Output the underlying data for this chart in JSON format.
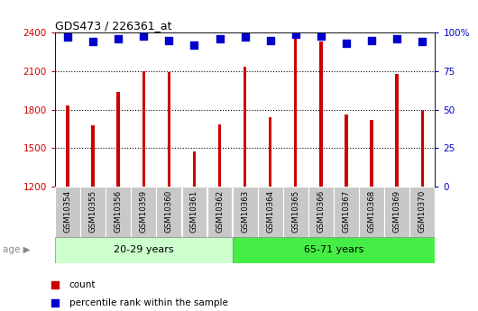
{
  "title": "GDS473 / 226361_at",
  "samples": [
    "GSM10354",
    "GSM10355",
    "GSM10356",
    "GSM10359",
    "GSM10360",
    "GSM10361",
    "GSM10362",
    "GSM10363",
    "GSM10364",
    "GSM10365",
    "GSM10366",
    "GSM10367",
    "GSM10368",
    "GSM10369",
    "GSM10370"
  ],
  "counts": [
    1830,
    1680,
    1940,
    2100,
    2095,
    1475,
    1685,
    2135,
    1740,
    2370,
    2330,
    1760,
    1720,
    2080,
    1800
  ],
  "percentile_ranks": [
    97,
    94,
    96,
    98,
    95,
    92,
    96,
    97,
    95,
    99,
    98,
    93,
    95,
    96,
    94
  ],
  "group1_label": "20-29 years",
  "group2_label": "65-71 years",
  "group1_count": 7,
  "group2_count": 8,
  "ylim_left": [
    1200,
    2400
  ],
  "ylim_right": [
    0,
    100
  ],
  "yticks_left": [
    1200,
    1500,
    1800,
    2100,
    2400
  ],
  "yticks_right": [
    0,
    25,
    50,
    75,
    100
  ],
  "bar_color": "#cc0000",
  "dot_color": "#0000cc",
  "group1_bg": "#ccffcc",
  "group2_bg": "#44ee44",
  "tick_label_bg": "#c8c8c8",
  "bar_width": 0.12,
  "percentile_dot_size": 30,
  "plot_bg": "#ffffff"
}
